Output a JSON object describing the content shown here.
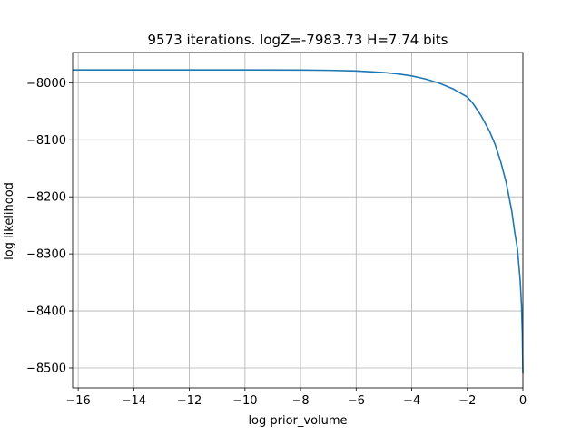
{
  "chart_data": {
    "type": "line",
    "title": "9573 iterations. logZ=-7983.73 H=7.74 bits",
    "xlabel": "log prior_volume",
    "ylabel": "log likelihood",
    "xlim": [
      -16.2,
      0.0
    ],
    "ylim": [
      -8535,
      -7947
    ],
    "xticks": [
      -16,
      -14,
      -12,
      -10,
      -8,
      -6,
      -4,
      -2,
      0
    ],
    "yticks": [
      -8500,
      -8400,
      -8300,
      -8200,
      -8100,
      -8000
    ],
    "xtick_labels": [
      "−16",
      "−14",
      "−12",
      "−10",
      "−8",
      "−6",
      "−4",
      "−2",
      "0"
    ],
    "ytick_labels": [
      "−8500",
      "−8400",
      "−8300",
      "−8200",
      "−8100",
      "−8000"
    ],
    "grid": true,
    "legend": "none",
    "series": [
      {
        "color": "#1f77b4",
        "x": [
          -16.2,
          -14,
          -12,
          -10,
          -8,
          -7,
          -6,
          -5,
          -4.5,
          -4,
          -3.5,
          -3,
          -2.5,
          -2,
          -1.8,
          -1.5,
          -1.2,
          -1.0,
          -0.8,
          -0.6,
          -0.5,
          -0.4,
          -0.3,
          -0.2,
          -0.1,
          -0.05,
          -0.02,
          0.0
        ],
        "y": [
          -7977.5,
          -7977.5,
          -7977.5,
          -7977.5,
          -7977.7,
          -7978.2,
          -7979.3,
          -7982.0,
          -7984.5,
          -7988.0,
          -7993.5,
          -8000.8,
          -8011.0,
          -8025.0,
          -8036.0,
          -8058.0,
          -8085.0,
          -8108.0,
          -8138.0,
          -8175.0,
          -8200.0,
          -8225.0,
          -8260.0,
          -8290.0,
          -8345.0,
          -8390.0,
          -8440.0,
          -8510.0
        ]
      }
    ]
  }
}
